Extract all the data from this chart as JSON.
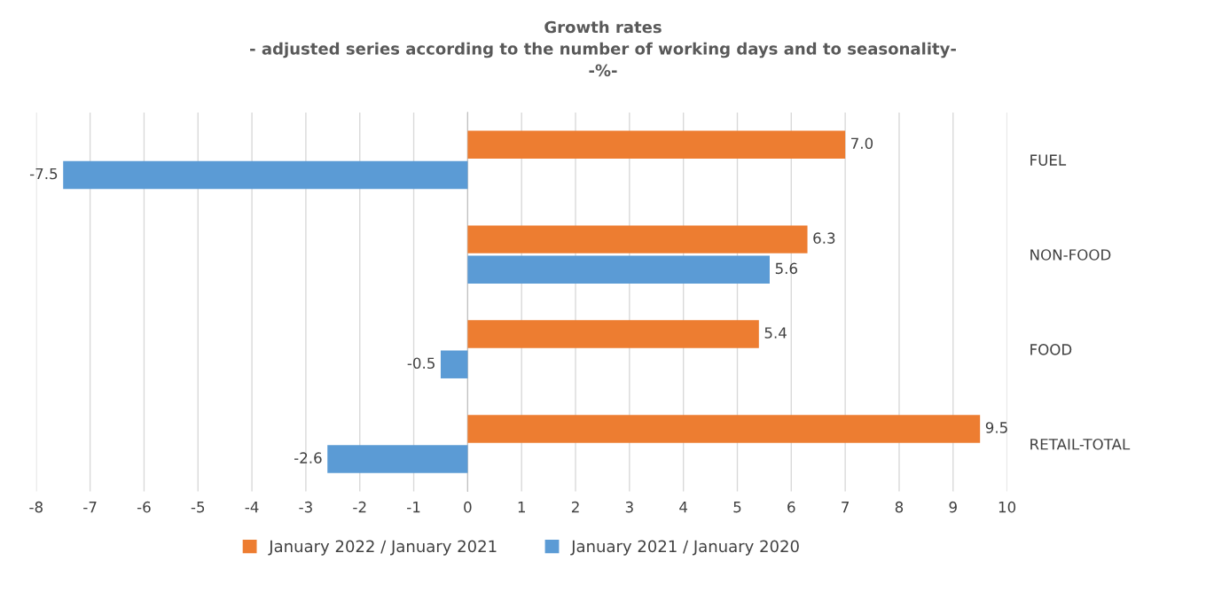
{
  "chart_data": {
    "type": "bar",
    "orientation": "horizontal",
    "title": "Growth rates\n- adjusted series according to the number of working days and to seasonality-\n-%-",
    "categories": [
      "FUEL",
      "NON-FOOD",
      "FOOD",
      "RETAIL-TOTAL"
    ],
    "series": [
      {
        "name": "January 2022 / January 2021",
        "color": "#ed7d31",
        "values": [
          7.0,
          6.3,
          5.4,
          9.5
        ],
        "value_labels": [
          "7.0",
          "6.3",
          "5.4",
          "9.5"
        ]
      },
      {
        "name": "January 2021 / January 2020",
        "color": "#5b9bd5",
        "values": [
          -7.5,
          5.6,
          -0.5,
          -2.6
        ],
        "value_labels": [
          "-7.5",
          "5.6",
          "-0.5",
          "-2.6"
        ]
      }
    ],
    "xlim": [
      -8,
      10
    ],
    "xticks": [
      -8,
      -7,
      -6,
      -5,
      -4,
      -3,
      -2,
      -1,
      0,
      1,
      2,
      3,
      4,
      5,
      6,
      7,
      8,
      9,
      10
    ],
    "grid": "x",
    "legend": "bottom"
  }
}
